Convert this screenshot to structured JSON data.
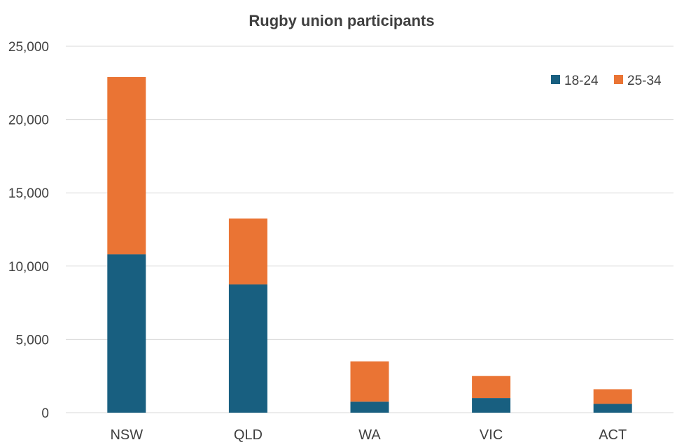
{
  "chart_data": {
    "type": "bar",
    "stacked": true,
    "title": "Rugby union participants",
    "xlabel": "",
    "ylabel": "",
    "categories": [
      "NSW",
      "QLD",
      "WA",
      "VIC",
      "ACT"
    ],
    "series": [
      {
        "name": "18-24",
        "values": [
          10800,
          8750,
          750,
          1000,
          600
        ],
        "color": "#185f80"
      },
      {
        "name": "25-34",
        "values": [
          12100,
          4500,
          2750,
          1500,
          1000
        ],
        "color": "#ea7434"
      }
    ],
    "ylim": [
      0,
      25000
    ],
    "yticks": [
      0,
      5000,
      10000,
      15000,
      20000,
      25000
    ],
    "ytick_labels": [
      "0",
      "5,000",
      "10,000",
      "15,000",
      "20,000",
      "25,000"
    ],
    "grid": true,
    "legend": "top-right"
  }
}
